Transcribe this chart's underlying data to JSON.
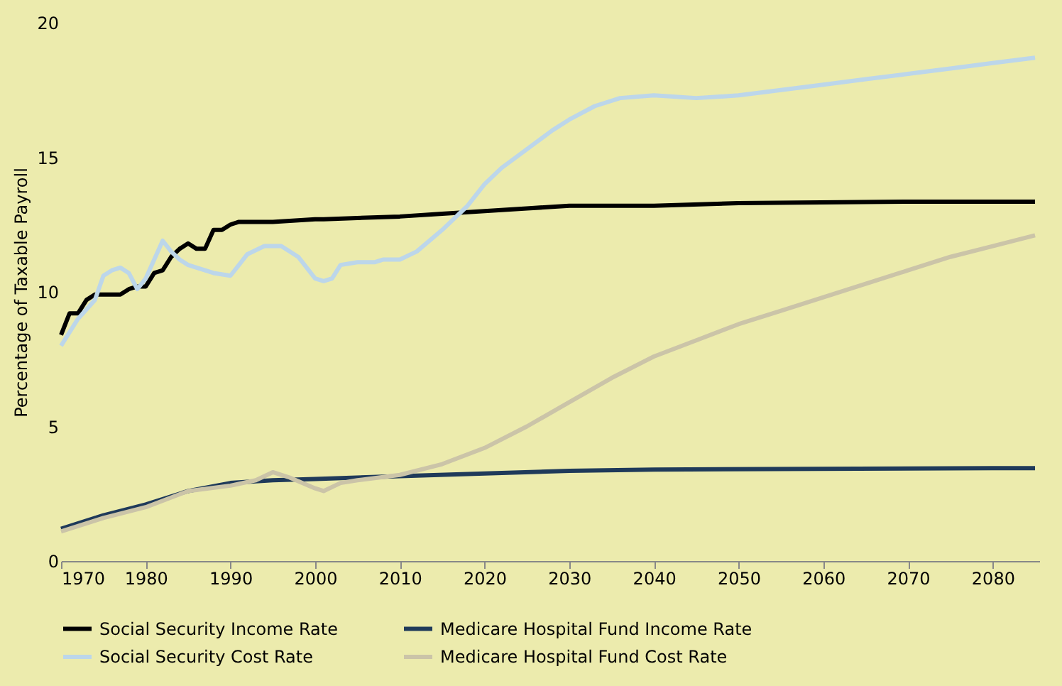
{
  "chart_data": {
    "type": "line",
    "ylabel": "Percentage of Taxable Payroll",
    "xlim": [
      1970,
      2085.5
    ],
    "xticks": [
      1970,
      1980,
      1990,
      2000,
      2010,
      2020,
      2030,
      2040,
      2050,
      2060,
      2070,
      2080
    ],
    "ylim": [
      0,
      20
    ],
    "yticks": [
      0,
      5,
      10,
      15,
      20
    ],
    "grid": false,
    "legend": "bottom",
    "marker": "none",
    "line_style": "solid",
    "series": [
      {
        "name": "Social Security Income Rate",
        "color": "#000000",
        "x": [
          1970,
          1971,
          1972,
          1973,
          1974,
          1975,
          1977,
          1978,
          1979,
          1980,
          1981,
          1982,
          1983,
          1984,
          1985,
          1986,
          1987,
          1988,
          1989,
          1990,
          1991,
          1995,
          2000,
          2001,
          2010,
          2015,
          2020,
          2025,
          2030,
          2040,
          2050,
          2070,
          2085
        ],
        "values": [
          8.4,
          9.2,
          9.2,
          9.7,
          9.9,
          9.9,
          9.9,
          10.1,
          10.2,
          10.2,
          10.7,
          10.8,
          11.3,
          11.6,
          11.8,
          11.6,
          11.6,
          12.3,
          12.3,
          12.5,
          12.6,
          12.6,
          12.7,
          12.7,
          12.8,
          12.9,
          13.0,
          13.1,
          13.2,
          13.2,
          13.3,
          13.35,
          13.35
        ]
      },
      {
        "name": "Medicare Hospital Fund Income Rate",
        "color": "#1f3a5a",
        "x": [
          1970,
          1975,
          1980,
          1985,
          1990,
          1995,
          2000,
          2010,
          2020,
          2030,
          2040,
          2080,
          2085
        ],
        "values": [
          1.2,
          1.7,
          2.1,
          2.6,
          2.9,
          3.0,
          3.05,
          3.15,
          3.25,
          3.35,
          3.4,
          3.45,
          3.45
        ]
      },
      {
        "name": "Social Security Cost Rate",
        "color": "#bcd6ea",
        "x": [
          1970,
          1972,
          1974,
          1975,
          1976,
          1977,
          1978,
          1979,
          1980,
          1981,
          1982,
          1983,
          1984,
          1985,
          1987,
          1988,
          1990,
          1991,
          1992,
          1994,
          1996,
          1998,
          2000,
          2001,
          2002,
          2003,
          2005,
          2007,
          2008,
          2010,
          2012,
          2015,
          2018,
          2020,
          2022,
          2025,
          2028,
          2030,
          2033,
          2036,
          2040,
          2045,
          2050,
          2055,
          2060,
          2065,
          2070,
          2075,
          2080,
          2085
        ],
        "values": [
          8.0,
          9.0,
          9.7,
          10.6,
          10.8,
          10.9,
          10.7,
          10.1,
          10.5,
          11.2,
          11.9,
          11.5,
          11.2,
          11.0,
          10.8,
          10.7,
          10.6,
          11.0,
          11.4,
          11.7,
          11.7,
          11.3,
          10.5,
          10.4,
          10.5,
          11.0,
          11.1,
          11.1,
          11.2,
          11.2,
          11.5,
          12.3,
          13.2,
          14.0,
          14.6,
          15.3,
          16.0,
          16.4,
          16.9,
          17.2,
          17.3,
          17.2,
          17.3,
          17.5,
          17.7,
          17.9,
          18.1,
          18.3,
          18.5,
          18.7
        ]
      },
      {
        "name": "Medicare Hospital Fund Cost Rate",
        "color": "#cbc4a8",
        "x": [
          1970,
          1975,
          1980,
          1985,
          1990,
          1993,
          1995,
          1997,
          2000,
          2001,
          2003,
          2005,
          2010,
          2015,
          2020,
          2025,
          2030,
          2035,
          2040,
          2045,
          2050,
          2055,
          2060,
          2065,
          2070,
          2075,
          2080,
          2085
        ],
        "values": [
          1.1,
          1.6,
          2.0,
          2.6,
          2.8,
          3.0,
          3.3,
          3.1,
          2.7,
          2.6,
          2.9,
          3.0,
          3.2,
          3.6,
          4.2,
          5.0,
          5.9,
          6.8,
          7.6,
          8.2,
          8.8,
          9.3,
          9.8,
          10.3,
          10.8,
          11.3,
          11.7,
          12.1
        ]
      }
    ]
  }
}
